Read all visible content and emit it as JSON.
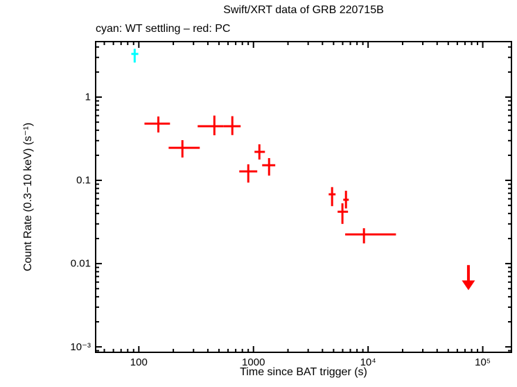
{
  "title": "Swift/XRT data of GRB 220715B",
  "subtitle": "cyan: WT settling – red: PC",
  "colors": {
    "wt_settling": "#00ffff",
    "pc": "#ff0000",
    "axis": "#000000",
    "background": "#ffffff"
  },
  "chart_data": {
    "type": "scatter",
    "title": "Swift/XRT data of GRB 220715B",
    "subtitle": "cyan: WT settling – red: PC",
    "xlabel": "Time since BAT trigger (s)",
    "ylabel": "Count Rate (0.3−10 keV) (s⁻¹)",
    "xscale": "log",
    "yscale": "log",
    "grid": false,
    "legend": "none (color-coded in subtitle)",
    "xlim": [
      42,
      178000
    ],
    "ylim": [
      0.00086,
      4.64
    ],
    "x_major_ticks": [
      {
        "value": 100,
        "label": "100"
      },
      {
        "value": 1000,
        "label": "1000"
      },
      {
        "value": 10000,
        "label": "10⁴"
      },
      {
        "value": 100000,
        "label": "10⁵"
      }
    ],
    "y_major_ticks": [
      {
        "value": 1,
        "label": "1"
      },
      {
        "value": 0.1,
        "label": "0.1"
      },
      {
        "value": 0.01,
        "label": "0.01"
      },
      {
        "value": 0.001,
        "label": "10⁻³"
      }
    ],
    "series": [
      {
        "name": "WT settling",
        "color": "#00ffff",
        "marker": "cross-error-bars",
        "points": [
          {
            "t": 92,
            "t_lo": 86,
            "t_hi": 99,
            "rate": 3.3,
            "rate_lo": 2.6,
            "rate_hi": 3.8
          }
        ]
      },
      {
        "name": "PC",
        "color": "#ff0000",
        "marker": "cross-error-bars",
        "points": [
          {
            "t": 148,
            "t_lo": 112,
            "t_hi": 187,
            "rate": 0.48,
            "rate_lo": 0.376,
            "rate_hi": 0.585
          },
          {
            "t": 240,
            "t_lo": 182,
            "t_hi": 340,
            "rate": 0.246,
            "rate_lo": 0.188,
            "rate_hi": 0.304
          },
          {
            "t": 456,
            "t_lo": 326,
            "t_hi": 546,
            "rate": 0.447,
            "rate_lo": 0.348,
            "rate_hi": 0.6
          },
          {
            "t": 654,
            "t_lo": 546,
            "t_hi": 773,
            "rate": 0.447,
            "rate_lo": 0.35,
            "rate_hi": 0.59
          },
          {
            "t": 901,
            "t_lo": 752,
            "t_hi": 1079,
            "rate": 0.128,
            "rate_lo": 0.094,
            "rate_hi": 0.156
          },
          {
            "t": 1126,
            "t_lo": 1021,
            "t_hi": 1259,
            "rate": 0.22,
            "rate_lo": 0.178,
            "rate_hi": 0.271
          },
          {
            "t": 1368,
            "t_lo": 1191,
            "t_hi": 1549,
            "rate": 0.152,
            "rate_lo": 0.114,
            "rate_hi": 0.185
          },
          {
            "t": 4850,
            "t_lo": 4530,
            "t_hi": 5200,
            "rate": 0.068,
            "rate_lo": 0.049,
            "rate_hi": 0.083
          },
          {
            "t": 5970,
            "t_lo": 5420,
            "t_hi": 6680,
            "rate": 0.042,
            "rate_lo": 0.03,
            "rate_hi": 0.053
          },
          {
            "t": 6410,
            "t_lo": 6070,
            "t_hi": 6780,
            "rate": 0.0585,
            "rate_lo": 0.046,
            "rate_hi": 0.075
          },
          {
            "t": 9200,
            "t_lo": 6310,
            "t_hi": 17500,
            "rate": 0.0224,
            "rate_lo": 0.0175,
            "rate_hi": 0.0266
          }
        ]
      }
    ],
    "upper_limits": [
      {
        "t": 75000,
        "rate": 0.0096,
        "arrow_to": 0.0048,
        "color": "#ff0000"
      }
    ]
  }
}
